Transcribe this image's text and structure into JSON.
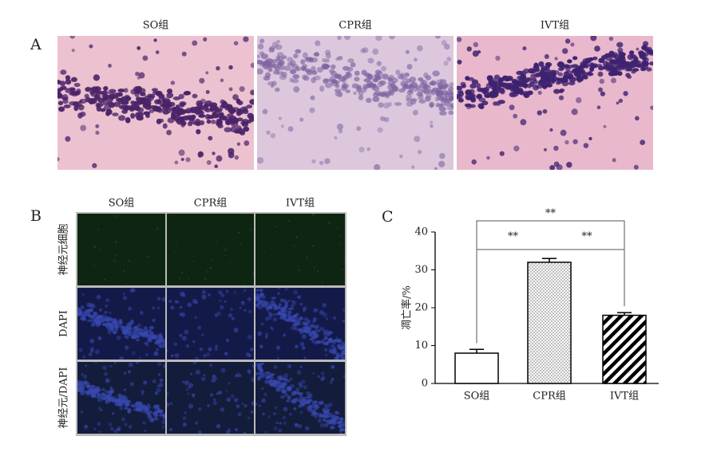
{
  "panel_a": {
    "label": "A",
    "columns": [
      "SO组",
      "CPR组",
      "IVT组"
    ]
  },
  "panel_b": {
    "label": "B",
    "columns": [
      "SO组",
      "CPR组",
      "IVT组"
    ],
    "rows": [
      "神经元细胞",
      "DAPI",
      "神经元/DAPI"
    ]
  },
  "chart_data": {
    "type": "bar",
    "label": "C",
    "y_label": "凋亡率/%",
    "categories": [
      "SO组",
      "CPR组",
      "IVT组"
    ],
    "values": [
      8,
      32,
      18
    ],
    "errors": [
      1,
      1,
      0.7
    ],
    "patterns": [
      "none",
      "dots",
      "stripes"
    ],
    "color": "#000000",
    "ylim": [
      0,
      40
    ],
    "yticks": [
      0,
      10,
      20,
      30,
      40
    ],
    "significance": [
      "**",
      "**",
      "**"
    ]
  }
}
